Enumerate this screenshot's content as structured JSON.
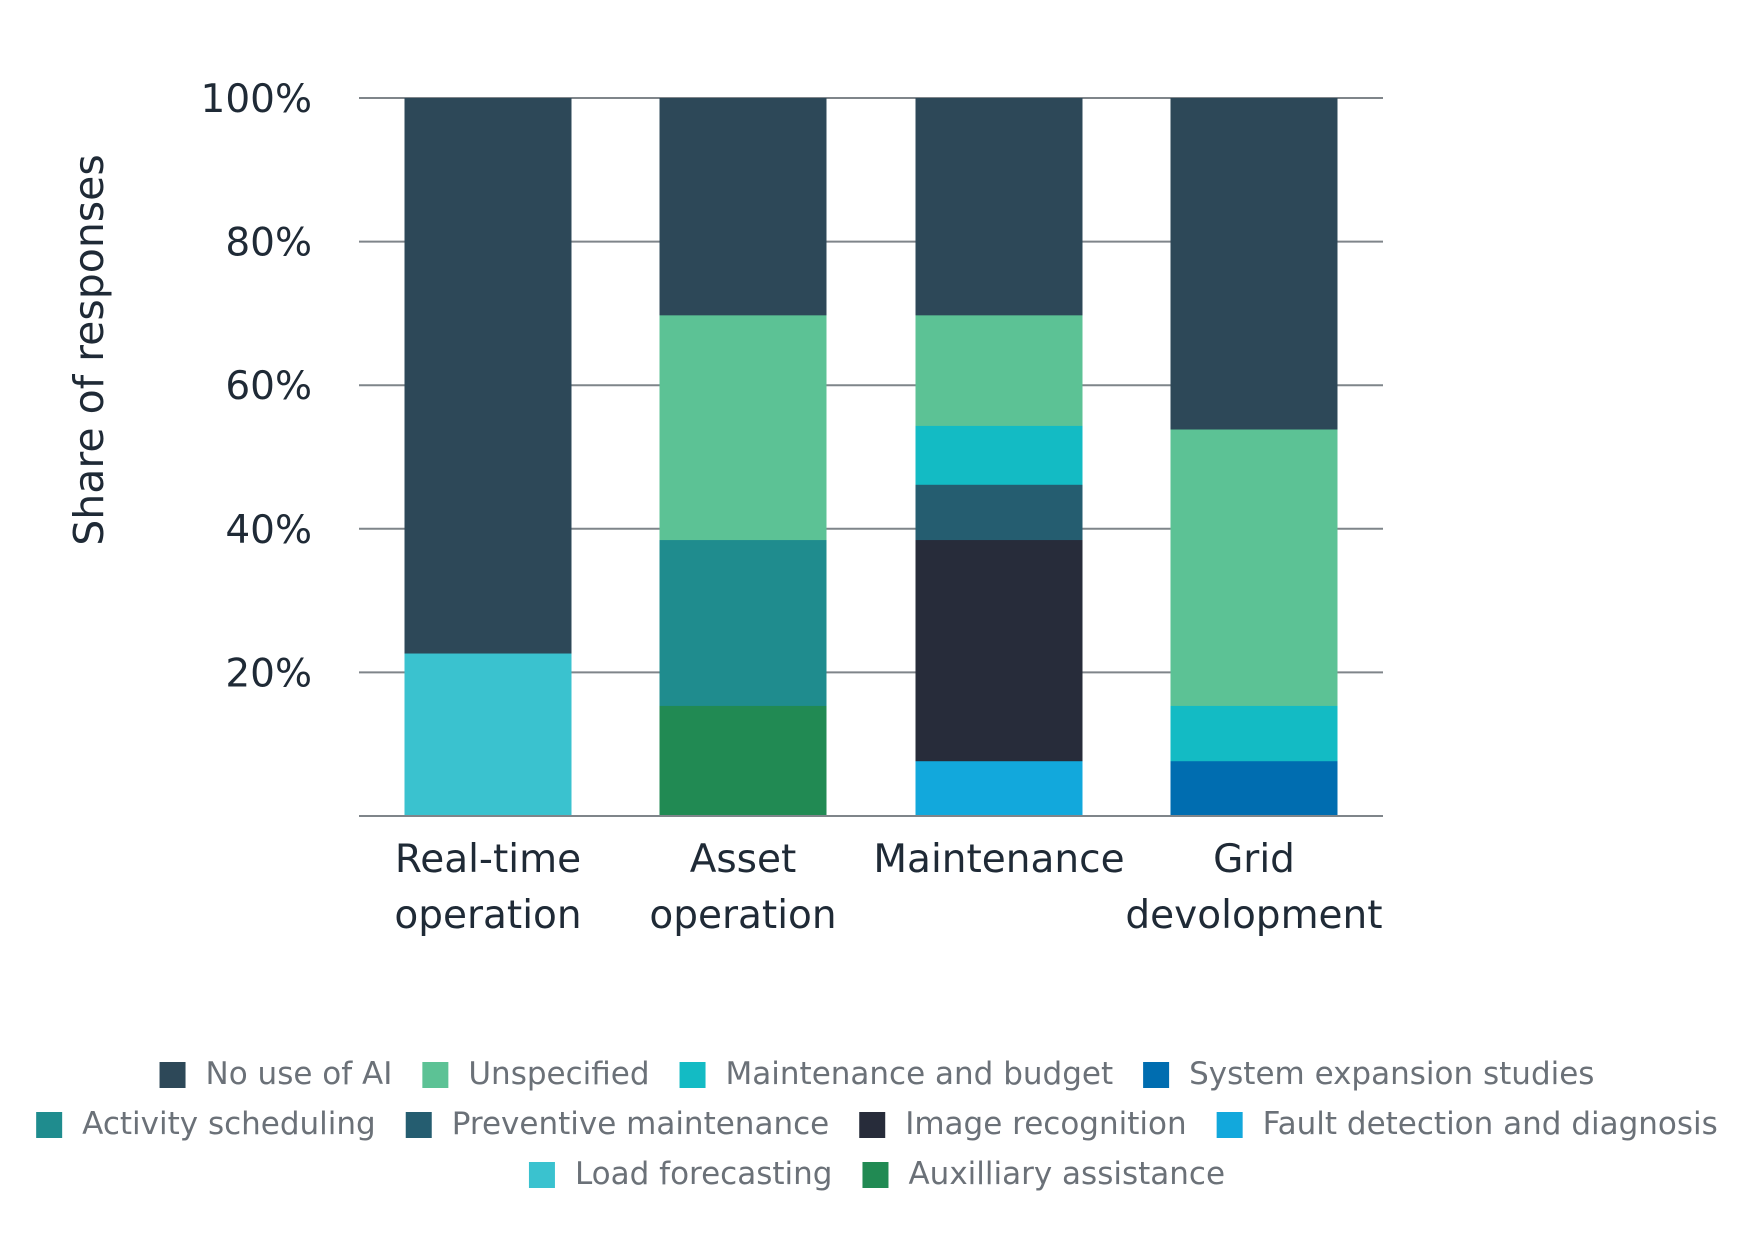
{
  "chart_data": {
    "type": "bar",
    "stacked": true,
    "ylabel": "Share of responses",
    "ylim": [
      0,
      100
    ],
    "yticks": [
      "20%",
      "40%",
      "60%",
      "80%",
      "100%"
    ],
    "ytick_values": [
      20,
      40,
      60,
      80,
      100
    ],
    "categories": [
      [
        "Real-time",
        "operation"
      ],
      [
        "Asset",
        "operation"
      ],
      [
        "Maintenance"
      ],
      [
        "Grid",
        "devolopment"
      ]
    ],
    "series": [
      {
        "name": "Fault detection and diagnosis",
        "color": "#12a8dc",
        "values": [
          0,
          0,
          7.7,
          0
        ]
      },
      {
        "name": "System expansion studies",
        "color": "#006db0",
        "values": [
          0,
          0,
          0,
          7.7
        ]
      },
      {
        "name": "Load forecasting",
        "color": "#3ac2cf",
        "values": [
          22.7,
          0,
          0,
          0
        ]
      },
      {
        "name": "Auxilliary assistance",
        "color": "#218a53",
        "values": [
          0,
          15.4,
          0,
          0
        ]
      },
      {
        "name": "Image recognition",
        "color": "#272c3a",
        "values": [
          0,
          0,
          30.8,
          0
        ]
      },
      {
        "name": "Activity scheduling",
        "color": "#1f8c8e",
        "values": [
          0,
          23.1,
          0,
          0
        ]
      },
      {
        "name": "Preventive maintenance",
        "color": "#255d70",
        "values": [
          0,
          0,
          7.7,
          0
        ]
      },
      {
        "name": "Maintenance and budget",
        "color": "#13bbc4",
        "values": [
          0,
          0,
          8.2,
          7.7
        ]
      },
      {
        "name": "Unspecified",
        "color": "#5cc295",
        "values": [
          0,
          31.3,
          15.4,
          38.5
        ]
      },
      {
        "name": "No use of AI",
        "color": "#2d4858",
        "values": [
          77.3,
          30.2,
          30.2,
          46.1
        ]
      }
    ],
    "legend": {
      "placement": "bottom",
      "rows": [
        [
          "No use of AI",
          "Unspecified",
          "Maintenance and budget",
          "System expansion studies"
        ],
        [
          "Activity scheduling",
          "Preventive maintenance",
          "Image recognition",
          "Fault detection and diagnosis"
        ],
        [
          "Load forecasting",
          "Auxilliary assistance"
        ]
      ]
    },
    "grid": true
  }
}
